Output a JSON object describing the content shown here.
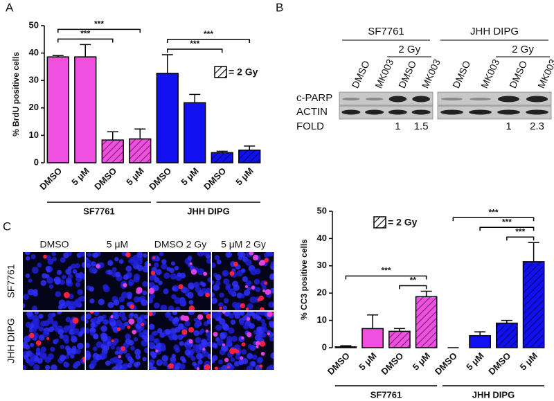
{
  "panel_labels": [
    "A",
    "B",
    "C"
  ],
  "chart_data": [
    {
      "type": "bar",
      "ylabel": "% BrdU positive cells",
      "categories": [
        "DMSO",
        "5 μM",
        "DMSO",
        "5 μM",
        "DMSO",
        "5 μM",
        "DMSO",
        "5 μM"
      ],
      "category_groups": [
        "SF7761",
        "SF7761",
        "SF7761",
        "SF7761",
        "JHH DIPG",
        "JHH DIPG",
        "JHH DIPG",
        "JHH DIPG"
      ],
      "series": [
        {
          "values": [
            38.6,
            38.6,
            8.3,
            8.7,
            32.6,
            21.9,
            3.7,
            4.6
          ],
          "errors": [
            0.5,
            4.5,
            3.0,
            3.6,
            6.8,
            3.0,
            0.5,
            1.5
          ],
          "colors": [
            "#f050e0",
            "#f050e0",
            "#f050e0",
            "#f050e0",
            "#1010f0",
            "#1010f0",
            "#1010f0",
            "#1010f0"
          ],
          "hatched": [
            false,
            false,
            true,
            true,
            false,
            false,
            true,
            true
          ]
        }
      ],
      "ylim": [
        0,
        50
      ],
      "yticks": [
        0,
        10,
        20,
        30,
        40,
        50
      ],
      "legend": {
        "label": "= 2 Gy"
      },
      "significance": [
        {
          "from": 0,
          "to": 2,
          "label": "***"
        },
        {
          "from": 0,
          "to": 3,
          "label": "***"
        },
        {
          "from": 4,
          "to": 6,
          "label": "***"
        },
        {
          "from": 4,
          "to": 7,
          "label": "***"
        }
      ]
    },
    {
      "type": "bar",
      "ylabel": "% CC3 positive cells",
      "categories": [
        "DMSO",
        "5 μM",
        "DMSO",
        "5 μM",
        "DMSO",
        "5 μM",
        "DMSO",
        "5 μM"
      ],
      "category_groups": [
        "SF7761",
        "SF7761",
        "SF7761",
        "SF7761",
        "JHH DIPG",
        "JHH DIPG",
        "JHH DIPG",
        "JHH DIPG"
      ],
      "series": [
        {
          "values": [
            0.3,
            7.0,
            6.0,
            18.7,
            0,
            4.4,
            9.0,
            31.5
          ],
          "errors": [
            0.4,
            5.0,
            1.0,
            2.0,
            0,
            1.4,
            1.0,
            7.0
          ],
          "colors": [
            "#f050e0",
            "#f050e0",
            "#f050e0",
            "#f050e0",
            "#1010f0",
            "#1010f0",
            "#1010f0",
            "#1010f0"
          ],
          "hatched": [
            false,
            false,
            true,
            true,
            false,
            false,
            true,
            true
          ]
        }
      ],
      "ylim": [
        0,
        50
      ],
      "yticks": [
        0,
        10,
        20,
        30,
        40,
        50
      ],
      "legend": {
        "label": "= 2 Gy"
      },
      "significance": [
        {
          "from": 2,
          "to": 3,
          "label": "**"
        },
        {
          "from": 0,
          "to": 3,
          "label": "***"
        },
        {
          "from": 6,
          "to": 7,
          "label": "***"
        },
        {
          "from": 5,
          "to": 7,
          "label": "***"
        },
        {
          "from": 4,
          "to": 7,
          "label": "***"
        }
      ]
    }
  ],
  "blot": {
    "cell_lines": [
      {
        "name": "SF7761",
        "treatment": "2 Gy",
        "lanes": [
          "DMSO",
          "MK003",
          "DMSO",
          "MK003"
        ],
        "fold": [
          null,
          null,
          1,
          1.5
        ]
      },
      {
        "name": "JHH DIPG",
        "treatment": "2 Gy",
        "lanes": [
          "DMSO",
          "MK003",
          "DMSO",
          "MK003"
        ],
        "fold": [
          null,
          null,
          1,
          2.3
        ]
      }
    ],
    "rows": [
      "c-PARP",
      "ACTIN"
    ],
    "fold_label": "FOLD"
  },
  "micrograph": {
    "columns": [
      "DMSO",
      "5 μM",
      "DMSO 2 Gy",
      "5 μM 2 Gy"
    ],
    "rows": [
      "SF7761",
      "JHH DIPG"
    ]
  }
}
